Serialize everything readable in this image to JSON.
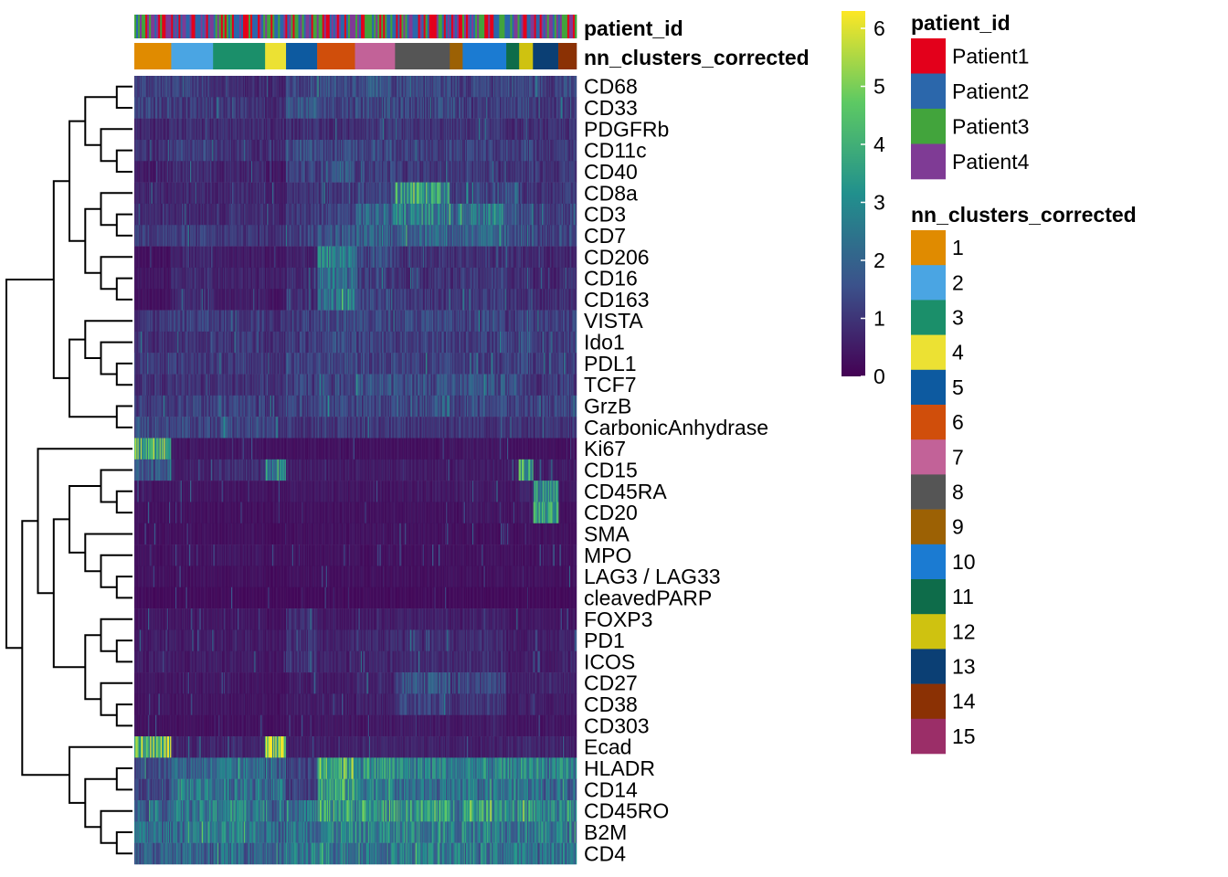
{
  "chart_data": {
    "type": "heatmap",
    "title": "",
    "rows": [
      "CD68",
      "CD33",
      "PDGFRb",
      "CD11c",
      "CD40",
      "CD8a",
      "CD3",
      "CD7",
      "CD206",
      "CD16",
      "CD163",
      "VISTA",
      "Ido1",
      "PDL1",
      "TCF7",
      "GrzB",
      "CarbonicAnhydrase",
      "Ki67",
      "CD15",
      "CD45RA",
      "CD20",
      "SMA",
      "MPO",
      "LAG3 / LAG33",
      "cleavedPARP",
      "FOXP3",
      "PD1",
      "ICOS",
      "CD27",
      "CD38",
      "CD303",
      "Ecad",
      "HLADR",
      "CD14",
      "CD45RO",
      "B2M",
      "CD4"
    ],
    "column_annotations": [
      {
        "name": "patient_id",
        "levels": [
          "Patient1",
          "Patient2",
          "Patient3",
          "Patient4"
        ]
      },
      {
        "name": "nn_clusters_corrected",
        "levels": [
          "1",
          "2",
          "3",
          "4",
          "5",
          "6",
          "7",
          "8",
          "9",
          "10",
          "11",
          "12",
          "13",
          "14",
          "15"
        ]
      }
    ],
    "cluster_segments": [
      {
        "cluster": "1",
        "share": 0.083
      },
      {
        "cluster": "2",
        "share": 0.094
      },
      {
        "cluster": "3",
        "share": 0.117
      },
      {
        "cluster": "4",
        "share": 0.047
      },
      {
        "cluster": "5",
        "share": 0.07
      },
      {
        "cluster": "6",
        "share": 0.085
      },
      {
        "cluster": "7",
        "share": 0.09
      },
      {
        "cluster": "8",
        "share": 0.123
      },
      {
        "cluster": "9",
        "share": 0.029
      },
      {
        "cluster": "10",
        "share": 0.098
      },
      {
        "cluster": "11",
        "share": 0.029
      },
      {
        "cluster": "12",
        "share": 0.031
      },
      {
        "cluster": "13",
        "share": 0.057
      },
      {
        "cluster": "14",
        "share": 0.041
      }
    ],
    "row_cluster_profile": {
      "CD68": [
        1.2,
        1.2,
        0.8,
        0.7,
        1.2,
        1.4,
        1.6,
        1.4,
        1.2,
        1.2,
        1.3,
        1.3,
        1.2,
        1.3
      ],
      "CD33": [
        1.2,
        1.1,
        1.0,
        0.8,
        1.6,
        1.3,
        1.4,
        1.3,
        1.2,
        1.1,
        1.2,
        1.3,
        1.0,
        1.3
      ],
      "PDGFRb": [
        0.7,
        0.8,
        0.8,
        0.7,
        0.9,
        0.8,
        1.0,
        0.9,
        0.9,
        0.9,
        0.8,
        0.7,
        0.8,
        0.9
      ],
      "CD11c": [
        0.9,
        1.2,
        0.9,
        0.8,
        1.4,
        1.3,
        1.2,
        1.1,
        1.2,
        1.1,
        1.2,
        1.3,
        1.0,
        1.1
      ],
      "CD40": [
        0.5,
        0.8,
        0.7,
        0.4,
        1.2,
        1.4,
        1.2,
        1.0,
        1.0,
        1.0,
        1.0,
        1.1,
        0.9,
        1.0
      ],
      "CD8a": [
        0.7,
        0.7,
        0.7,
        0.6,
        0.9,
        1.0,
        1.2,
        3.5,
        1.0,
        1.3,
        1.5,
        1.1,
        0.9,
        1.0
      ],
      "CD3": [
        0.8,
        0.8,
        0.8,
        0.7,
        1.0,
        1.2,
        2.0,
        2.6,
        2.3,
        2.5,
        1.8,
        1.3,
        1.1,
        1.3
      ],
      "CD7": [
        1.2,
        1.1,
        1.0,
        0.9,
        1.3,
        1.6,
        1.8,
        2.0,
        1.8,
        1.9,
        1.5,
        1.4,
        1.2,
        1.4
      ],
      "CD206": [
        0.3,
        0.7,
        0.5,
        0.4,
        0.6,
        2.6,
        1.3,
        0.9,
        0.9,
        0.9,
        0.9,
        0.8,
        0.7,
        0.8
      ],
      "CD16": [
        0.4,
        0.8,
        0.6,
        0.5,
        0.7,
        2.2,
        1.2,
        0.9,
        0.9,
        1.0,
        0.9,
        0.9,
        0.7,
        0.9
      ],
      "CD163": [
        0.3,
        0.8,
        0.5,
        0.4,
        0.8,
        2.4,
        1.3,
        1.0,
        0.9,
        1.0,
        0.9,
        0.9,
        0.8,
        0.9
      ],
      "VISTA": [
        1.0,
        1.2,
        1.1,
        0.9,
        1.2,
        1.5,
        1.3,
        1.3,
        1.2,
        1.3,
        1.2,
        1.4,
        1.1,
        1.2
      ],
      "Ido1": [
        0.9,
        1.0,
        1.0,
        0.8,
        1.1,
        1.3,
        1.2,
        1.2,
        1.1,
        1.2,
        1.1,
        1.6,
        1.0,
        1.1
      ],
      "PDL1": [
        1.0,
        1.1,
        1.0,
        0.9,
        1.2,
        1.3,
        1.2,
        1.2,
        1.1,
        1.2,
        1.1,
        1.3,
        1.1,
        1.1
      ],
      "TCF7": [
        0.9,
        0.9,
        0.9,
        0.8,
        1.2,
        1.1,
        1.5,
        1.5,
        1.4,
        1.6,
        1.2,
        1.1,
        1.0,
        1.1
      ],
      "GrzB": [
        1.1,
        1.2,
        1.2,
        1.0,
        1.3,
        1.4,
        1.3,
        1.5,
        1.3,
        1.4,
        1.2,
        1.2,
        1.2,
        1.2
      ],
      "CarbonicAnhydrase": [
        1.4,
        1.3,
        1.4,
        1.2,
        1.0,
        1.0,
        1.0,
        1.0,
        1.0,
        1.0,
        0.9,
        1.0,
        1.0,
        1.0
      ],
      "Ki67": [
        4.2,
        0.4,
        0.4,
        0.3,
        0.3,
        0.3,
        0.3,
        0.3,
        0.4,
        0.4,
        0.3,
        0.3,
        0.3,
        0.3
      ],
      "CD15": [
        1.6,
        0.6,
        0.8,
        2.8,
        0.5,
        0.5,
        0.5,
        0.5,
        0.5,
        0.5,
        0.6,
        3.5,
        0.6,
        0.5
      ],
      "CD45RA": [
        0.4,
        0.4,
        0.4,
        0.3,
        0.4,
        0.4,
        0.4,
        0.4,
        0.4,
        0.5,
        0.4,
        0.6,
        3.2,
        0.4
      ],
      "CD20": [
        0.3,
        0.3,
        0.3,
        0.3,
        0.3,
        0.3,
        0.3,
        0.3,
        0.3,
        0.4,
        0.3,
        0.5,
        3.6,
        0.3
      ],
      "SMA": [
        0.3,
        0.3,
        0.3,
        0.2,
        0.3,
        0.3,
        0.3,
        0.3,
        0.3,
        0.3,
        0.3,
        0.3,
        0.3,
        0.3
      ],
      "MPO": [
        0.3,
        0.4,
        0.4,
        0.3,
        0.3,
        0.3,
        0.3,
        0.3,
        0.3,
        0.3,
        0.3,
        0.3,
        0.3,
        0.3
      ],
      "LAG3 / LAG33": [
        0.3,
        0.3,
        0.3,
        0.2,
        0.3,
        0.3,
        0.3,
        0.3,
        0.3,
        0.3,
        0.3,
        0.3,
        0.3,
        0.3
      ],
      "cleavedPARP": [
        0.2,
        0.2,
        0.2,
        0.2,
        0.2,
        0.2,
        0.2,
        0.2,
        0.2,
        0.2,
        0.2,
        0.2,
        0.2,
        0.2
      ],
      "FOXP3": [
        0.4,
        0.4,
        0.4,
        0.3,
        0.9,
        0.4,
        0.5,
        0.6,
        0.5,
        0.6,
        0.4,
        0.4,
        0.4,
        0.4
      ],
      "PD1": [
        0.5,
        0.5,
        0.5,
        0.4,
        0.9,
        0.6,
        0.7,
        0.8,
        0.7,
        0.8,
        0.5,
        0.5,
        0.5,
        0.6
      ],
      "ICOS": [
        0.5,
        0.5,
        0.5,
        0.4,
        0.9,
        0.6,
        0.7,
        0.8,
        0.7,
        0.8,
        0.5,
        0.5,
        0.5,
        0.6
      ],
      "CD27": [
        0.4,
        0.4,
        0.4,
        0.3,
        0.5,
        0.5,
        0.7,
        1.6,
        1.0,
        1.3,
        0.6,
        0.6,
        0.7,
        0.6
      ],
      "CD38": [
        0.4,
        0.4,
        0.4,
        0.3,
        0.5,
        0.5,
        0.6,
        1.2,
        0.8,
        1.0,
        0.5,
        0.6,
        0.5,
        0.5
      ],
      "CD303": [
        0.3,
        0.3,
        0.3,
        0.3,
        0.4,
        0.4,
        0.4,
        0.5,
        0.4,
        0.5,
        0.4,
        0.4,
        0.4,
        0.4
      ],
      "Ecad": [
        4.4,
        0.7,
        0.7,
        4.8,
        0.6,
        0.6,
        0.6,
        0.6,
        0.6,
        0.6,
        0.6,
        0.7,
        0.6,
        0.6
      ],
      "HLADR": [
        1.5,
        2.0,
        2.2,
        1.8,
        1.3,
        4.2,
        3.2,
        2.8,
        2.4,
        2.7,
        2.6,
        3.1,
        2.7,
        2.6
      ],
      "CD14": [
        1.2,
        2.6,
        2.3,
        2.2,
        1.3,
        3.5,
        2.8,
        2.2,
        2.1,
        2.3,
        2.4,
        2.4,
        2.2,
        2.2
      ],
      "CD45RO": [
        2.0,
        2.4,
        2.8,
        2.0,
        2.5,
        3.5,
        3.2,
        3.3,
        3.0,
        3.5,
        3.0,
        3.0,
        2.8,
        3.0
      ],
      "B2M": [
        2.2,
        2.4,
        2.5,
        2.2,
        2.4,
        2.7,
        2.7,
        2.8,
        2.6,
        2.8,
        2.6,
        2.6,
        2.6,
        2.6
      ],
      "CD4": [
        1.8,
        2.0,
        2.2,
        1.9,
        2.5,
        2.6,
        2.5,
        2.6,
        2.4,
        2.5,
        2.4,
        2.4,
        2.3,
        2.4
      ]
    },
    "colorbar": {
      "min": 0,
      "max": 6.3,
      "ticks": [
        "0",
        "1",
        "2",
        "3",
        "4",
        "5",
        "6"
      ],
      "colors": [
        "#440154",
        "#3b528b",
        "#21908d",
        "#5dc963",
        "#fde725"
      ]
    },
    "legends": [
      {
        "title": "patient_id",
        "items": [
          {
            "label": "Patient1",
            "color": "#e3001b"
          },
          {
            "label": "Patient2",
            "color": "#2b67ab"
          },
          {
            "label": "Patient3",
            "color": "#42a43c"
          },
          {
            "label": "Patient4",
            "color": "#7f3b95"
          }
        ]
      },
      {
        "title": "nn_clusters_corrected",
        "items": [
          {
            "label": "1",
            "color": "#e08b00"
          },
          {
            "label": "2",
            "color": "#4aa5e3"
          },
          {
            "label": "3",
            "color": "#1b8f6a"
          },
          {
            "label": "4",
            "color": "#ece133"
          },
          {
            "label": "5",
            "color": "#0d5aa0"
          },
          {
            "label": "6",
            "color": "#d04e0b"
          },
          {
            "label": "7",
            "color": "#c26298"
          },
          {
            "label": "8",
            "color": "#555555"
          },
          {
            "label": "9",
            "color": "#9c6104"
          },
          {
            "label": "10",
            "color": "#1b7bd2"
          },
          {
            "label": "11",
            "color": "#0e6c4a"
          },
          {
            "label": "12",
            "color": "#cfc210"
          },
          {
            "label": "13",
            "color": "#0b3f74"
          },
          {
            "label": "14",
            "color": "#8b3104"
          },
          {
            "label": "15",
            "color": "#9b2e68"
          }
        ]
      }
    ],
    "row_dendrogram": [
      [
        0,
        1
      ],
      [
        3,
        4
      ],
      [
        2,
        "L1"
      ],
      [
        "L0",
        "L2"
      ],
      [
        6,
        7
      ],
      [
        5,
        "L4"
      ],
      [
        9,
        10
      ],
      [
        8,
        "L6"
      ],
      [
        "L5",
        "L7"
      ],
      [
        "L3",
        "L8"
      ],
      [
        13,
        14
      ],
      [
        12,
        "L10"
      ],
      [
        11,
        "L11"
      ],
      [
        15,
        16
      ],
      [
        "L12",
        "L13"
      ],
      [
        "L9",
        "L14"
      ],
      [
        19,
        20
      ],
      [
        18,
        "L16"
      ],
      [
        23,
        24
      ],
      [
        22,
        "L18"
      ],
      [
        21,
        "L19"
      ],
      [
        "L17",
        "L20"
      ],
      [
        26,
        27
      ],
      [
        25,
        "L22"
      ],
      [
        29,
        30
      ],
      [
        28,
        "L24"
      ],
      [
        "L23",
        "L25"
      ],
      [
        "L21",
        "L26"
      ],
      [
        17,
        "L27"
      ],
      [
        35,
        36
      ],
      [
        34,
        "L29"
      ],
      [
        32,
        33
      ],
      [
        "L30",
        "L31"
      ],
      [
        31,
        "L32"
      ],
      [
        "L28",
        "L33"
      ],
      [
        "L15",
        "L34"
      ]
    ]
  }
}
